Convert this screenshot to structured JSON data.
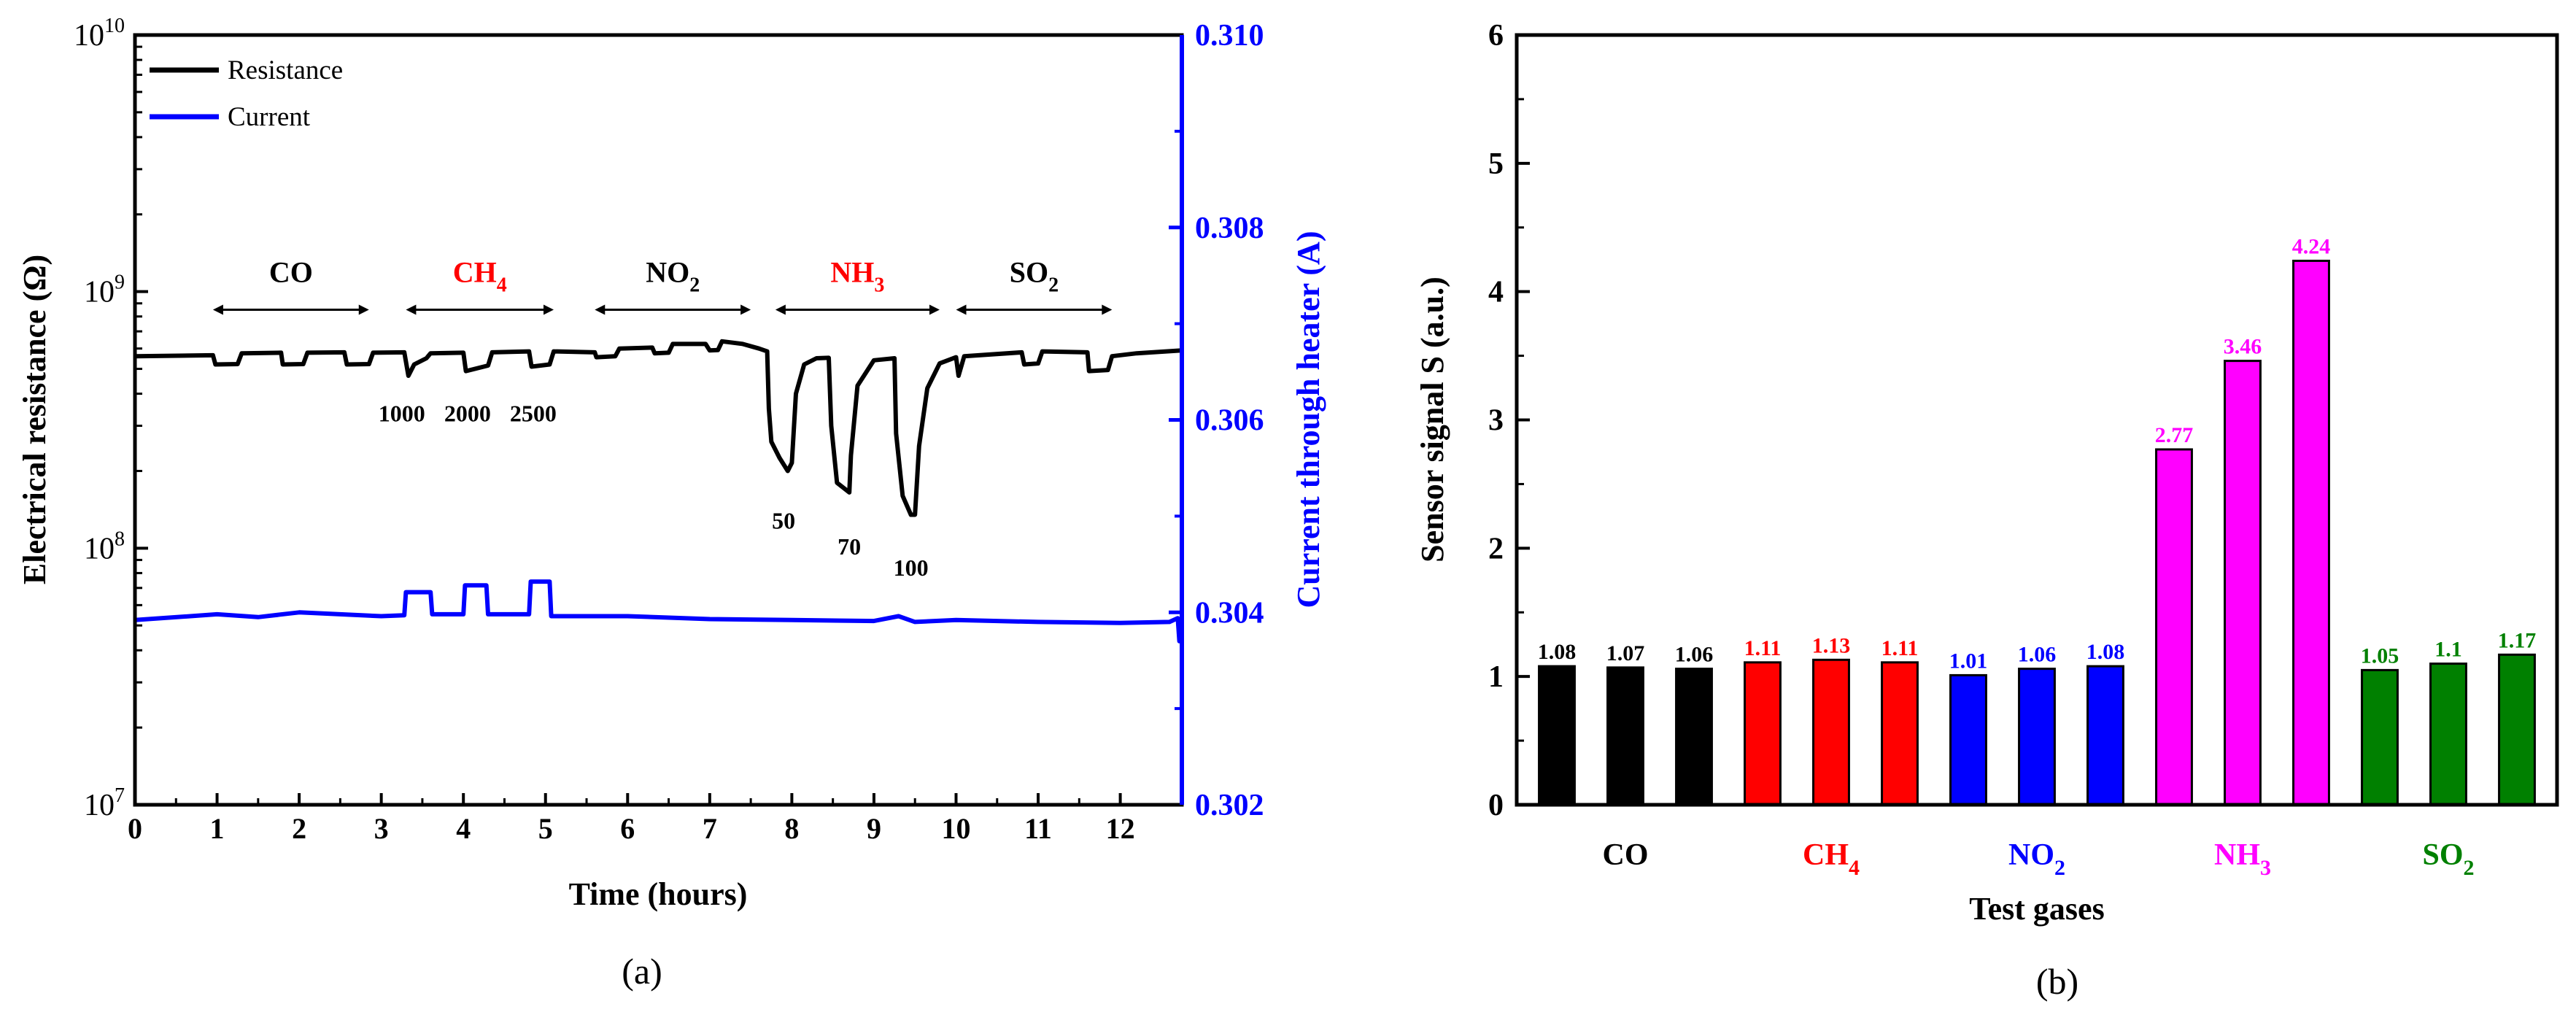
{
  "chart_data": [
    {
      "type": "line",
      "panel_label": "(a)",
      "xlabel": "Time (hours)",
      "ylabel_left": "Electrical resistance (Ω)",
      "ylabel_right": "Current through heater (A)",
      "xlim": [
        0,
        12.75
      ],
      "x_ticks": [
        "0",
        "1",
        "2",
        "3",
        "4",
        "5",
        "6",
        "7",
        "8",
        "9",
        "10",
        "11",
        "12"
      ],
      "y_left_scale": "log",
      "y_left_lim": [
        10000000,
        10000000000
      ],
      "y_left_ticks": [
        {
          "base": "10",
          "exp": "7"
        },
        {
          "base": "10",
          "exp": "8"
        },
        {
          "base": "10",
          "exp": "9"
        },
        {
          "base": "10",
          "exp": "10"
        }
      ],
      "y_right_lim": [
        0.302,
        0.31
      ],
      "y_right_ticks": [
        "0.302",
        "0.304",
        "0.306",
        "0.308",
        "0.310"
      ],
      "legend": [
        {
          "label": "Resistance",
          "color": "#000000"
        },
        {
          "label": "Current",
          "color": "#0000ff"
        }
      ],
      "series": [
        {
          "name": "Resistance",
          "axis": "left",
          "color": "#000000",
          "points": [
            [
              0,
              560000000
            ],
            [
              0.95,
              565000000
            ],
            [
              0.98,
              520000000
            ],
            [
              1.25,
              522000000
            ],
            [
              1.3,
              575000000
            ],
            [
              1.78,
              578000000
            ],
            [
              1.8,
              520000000
            ],
            [
              2.05,
              522000000
            ],
            [
              2.1,
              578000000
            ],
            [
              2.55,
              580000000
            ],
            [
              2.58,
              520000000
            ],
            [
              2.85,
              522000000
            ],
            [
              2.9,
              578000000
            ],
            [
              3.28,
              580000000
            ],
            [
              3.33,
              470000000
            ],
            [
              3.4,
              520000000
            ],
            [
              3.55,
              550000000
            ],
            [
              3.6,
              575000000
            ],
            [
              4.0,
              578000000
            ],
            [
              4.03,
              490000000
            ],
            [
              4.3,
              515000000
            ],
            [
              4.35,
              580000000
            ],
            [
              4.8,
              585000000
            ],
            [
              4.83,
              510000000
            ],
            [
              5.05,
              520000000
            ],
            [
              5.1,
              585000000
            ],
            [
              5.6,
              580000000
            ],
            [
              5.62,
              555000000
            ],
            [
              5.85,
              560000000
            ],
            [
              5.9,
              600000000
            ],
            [
              6.3,
              605000000
            ],
            [
              6.33,
              575000000
            ],
            [
              6.5,
              578000000
            ],
            [
              6.55,
              625000000
            ],
            [
              6.95,
              625000000
            ],
            [
              7.0,
              590000000
            ],
            [
              7.1,
              592000000
            ],
            [
              7.15,
              640000000
            ],
            [
              7.4,
              625000000
            ],
            [
              7.6,
              600000000
            ],
            [
              7.7,
              585000000
            ],
            [
              7.72,
              350000000
            ],
            [
              7.75,
              260000000
            ],
            [
              7.85,
              225000000
            ],
            [
              7.95,
              200000000
            ],
            [
              8.0,
              215000000
            ],
            [
              8.05,
              400000000
            ],
            [
              8.15,
              520000000
            ],
            [
              8.3,
              550000000
            ],
            [
              8.45,
              552000000
            ],
            [
              8.48,
              300000000
            ],
            [
              8.55,
              180000000
            ],
            [
              8.7,
              165000000
            ],
            [
              8.72,
              230000000
            ],
            [
              8.8,
              430000000
            ],
            [
              9.0,
              540000000
            ],
            [
              9.25,
              550000000
            ],
            [
              9.27,
              280000000
            ],
            [
              9.35,
              160000000
            ],
            [
              9.45,
              135000000
            ],
            [
              9.5,
              135000000
            ],
            [
              9.55,
              250000000
            ],
            [
              9.65,
              420000000
            ],
            [
              9.8,
              525000000
            ],
            [
              10.0,
              555000000
            ],
            [
              10.03,
              470000000
            ],
            [
              10.1,
              560000000
            ],
            [
              10.8,
              580000000
            ],
            [
              10.83,
              520000000
            ],
            [
              11.0,
              525000000
            ],
            [
              11.05,
              585000000
            ],
            [
              11.6,
              580000000
            ],
            [
              11.62,
              490000000
            ],
            [
              11.85,
              495000000
            ],
            [
              11.9,
              560000000
            ],
            [
              12.2,
              575000000
            ],
            [
              12.75,
              590000000
            ]
          ]
        },
        {
          "name": "Current",
          "axis": "right",
          "color": "#0000ff",
          "points": [
            [
              0,
              0.30392
            ],
            [
              1.0,
              0.30398
            ],
            [
              1.5,
              0.30395
            ],
            [
              2.0,
              0.304
            ],
            [
              3.0,
              0.30396
            ],
            [
              3.28,
              0.30397
            ],
            [
              3.3,
              0.30421
            ],
            [
              3.6,
              0.30421
            ],
            [
              3.62,
              0.30398
            ],
            [
              4.0,
              0.30398
            ],
            [
              4.02,
              0.30428
            ],
            [
              4.28,
              0.30428
            ],
            [
              4.3,
              0.30398
            ],
            [
              4.8,
              0.30398
            ],
            [
              4.82,
              0.30432
            ],
            [
              5.05,
              0.30432
            ],
            [
              5.07,
              0.30396
            ],
            [
              6.0,
              0.30396
            ],
            [
              7.0,
              0.30393
            ],
            [
              8.0,
              0.30392
            ],
            [
              9.0,
              0.30391
            ],
            [
              9.3,
              0.30396
            ],
            [
              9.5,
              0.3039
            ],
            [
              10.0,
              0.30392
            ],
            [
              11.0,
              0.3039
            ],
            [
              12.0,
              0.30389
            ],
            [
              12.6,
              0.3039
            ],
            [
              12.7,
              0.30394
            ],
            [
              12.72,
              0.3037
            ],
            [
              12.75,
              0.30388
            ]
          ]
        }
      ],
      "annotations": [
        {
          "label": "CO",
          "sub": "",
          "color": "#000000",
          "arrow_from": 0.95,
          "arrow_to": 2.85,
          "x": 1.9
        },
        {
          "label": "CH",
          "sub": "4",
          "color": "#ff0000",
          "arrow_from": 3.3,
          "arrow_to": 5.1,
          "x": 4.2
        },
        {
          "label": "NO",
          "sub": "2",
          "color": "#000000",
          "arrow_from": 5.6,
          "arrow_to": 7.5,
          "x": 6.55
        },
        {
          "label": "NH",
          "sub": "3",
          "color": "#ff0000",
          "arrow_from": 7.8,
          "arrow_to": 9.8,
          "x": 8.8
        },
        {
          "label": "SO",
          "sub": "2",
          "color": "#000000",
          "arrow_from": 10.0,
          "arrow_to": 11.9,
          "x": 10.95
        }
      ],
      "concentration_labels": [
        {
          "text": "1000",
          "x": 3.25,
          "y": 380000000
        },
        {
          "text": "2000",
          "x": 4.05,
          "y": 380000000
        },
        {
          "text": "2500",
          "x": 4.85,
          "y": 380000000
        },
        {
          "text": "50",
          "x": 7.9,
          "y": 145000000
        },
        {
          "text": "70",
          "x": 8.7,
          "y": 115000000
        },
        {
          "text": "100",
          "x": 9.45,
          "y": 95000000
        }
      ]
    },
    {
      "type": "bar",
      "panel_label": "(b)",
      "xlabel": "Test gases",
      "ylabel": "Sensor signal S (a.u.)",
      "ylim": [
        0,
        6
      ],
      "y_ticks": [
        "0",
        "1",
        "2",
        "3",
        "4",
        "5",
        "6"
      ],
      "groups": [
        {
          "label": "CO",
          "sub": "",
          "color": "#000000",
          "values": [
            1.08,
            1.07,
            1.06
          ],
          "labels": [
            "1.08",
            "1.07",
            "1.06"
          ]
        },
        {
          "label": "CH",
          "sub": "4",
          "color": "#ff0000",
          "values": [
            1.11,
            1.13,
            1.11
          ],
          "labels": [
            "1.11",
            "1.13",
            "1.11"
          ]
        },
        {
          "label": "NO",
          "sub": "2",
          "color": "#0000ff",
          "values": [
            1.01,
            1.06,
            1.08
          ],
          "labels": [
            "1.01",
            "1.06",
            "1.08"
          ]
        },
        {
          "label": "NH",
          "sub": "3",
          "color": "#ff00ff",
          "values": [
            2.77,
            3.46,
            4.24
          ],
          "labels": [
            "2.77",
            "3.46",
            "4.24"
          ]
        },
        {
          "label": "SO",
          "sub": "2",
          "color": "#008000",
          "values": [
            1.05,
            1.1,
            1.17
          ],
          "labels": [
            "1.05",
            "1.1",
            "1.17"
          ]
        }
      ]
    }
  ]
}
